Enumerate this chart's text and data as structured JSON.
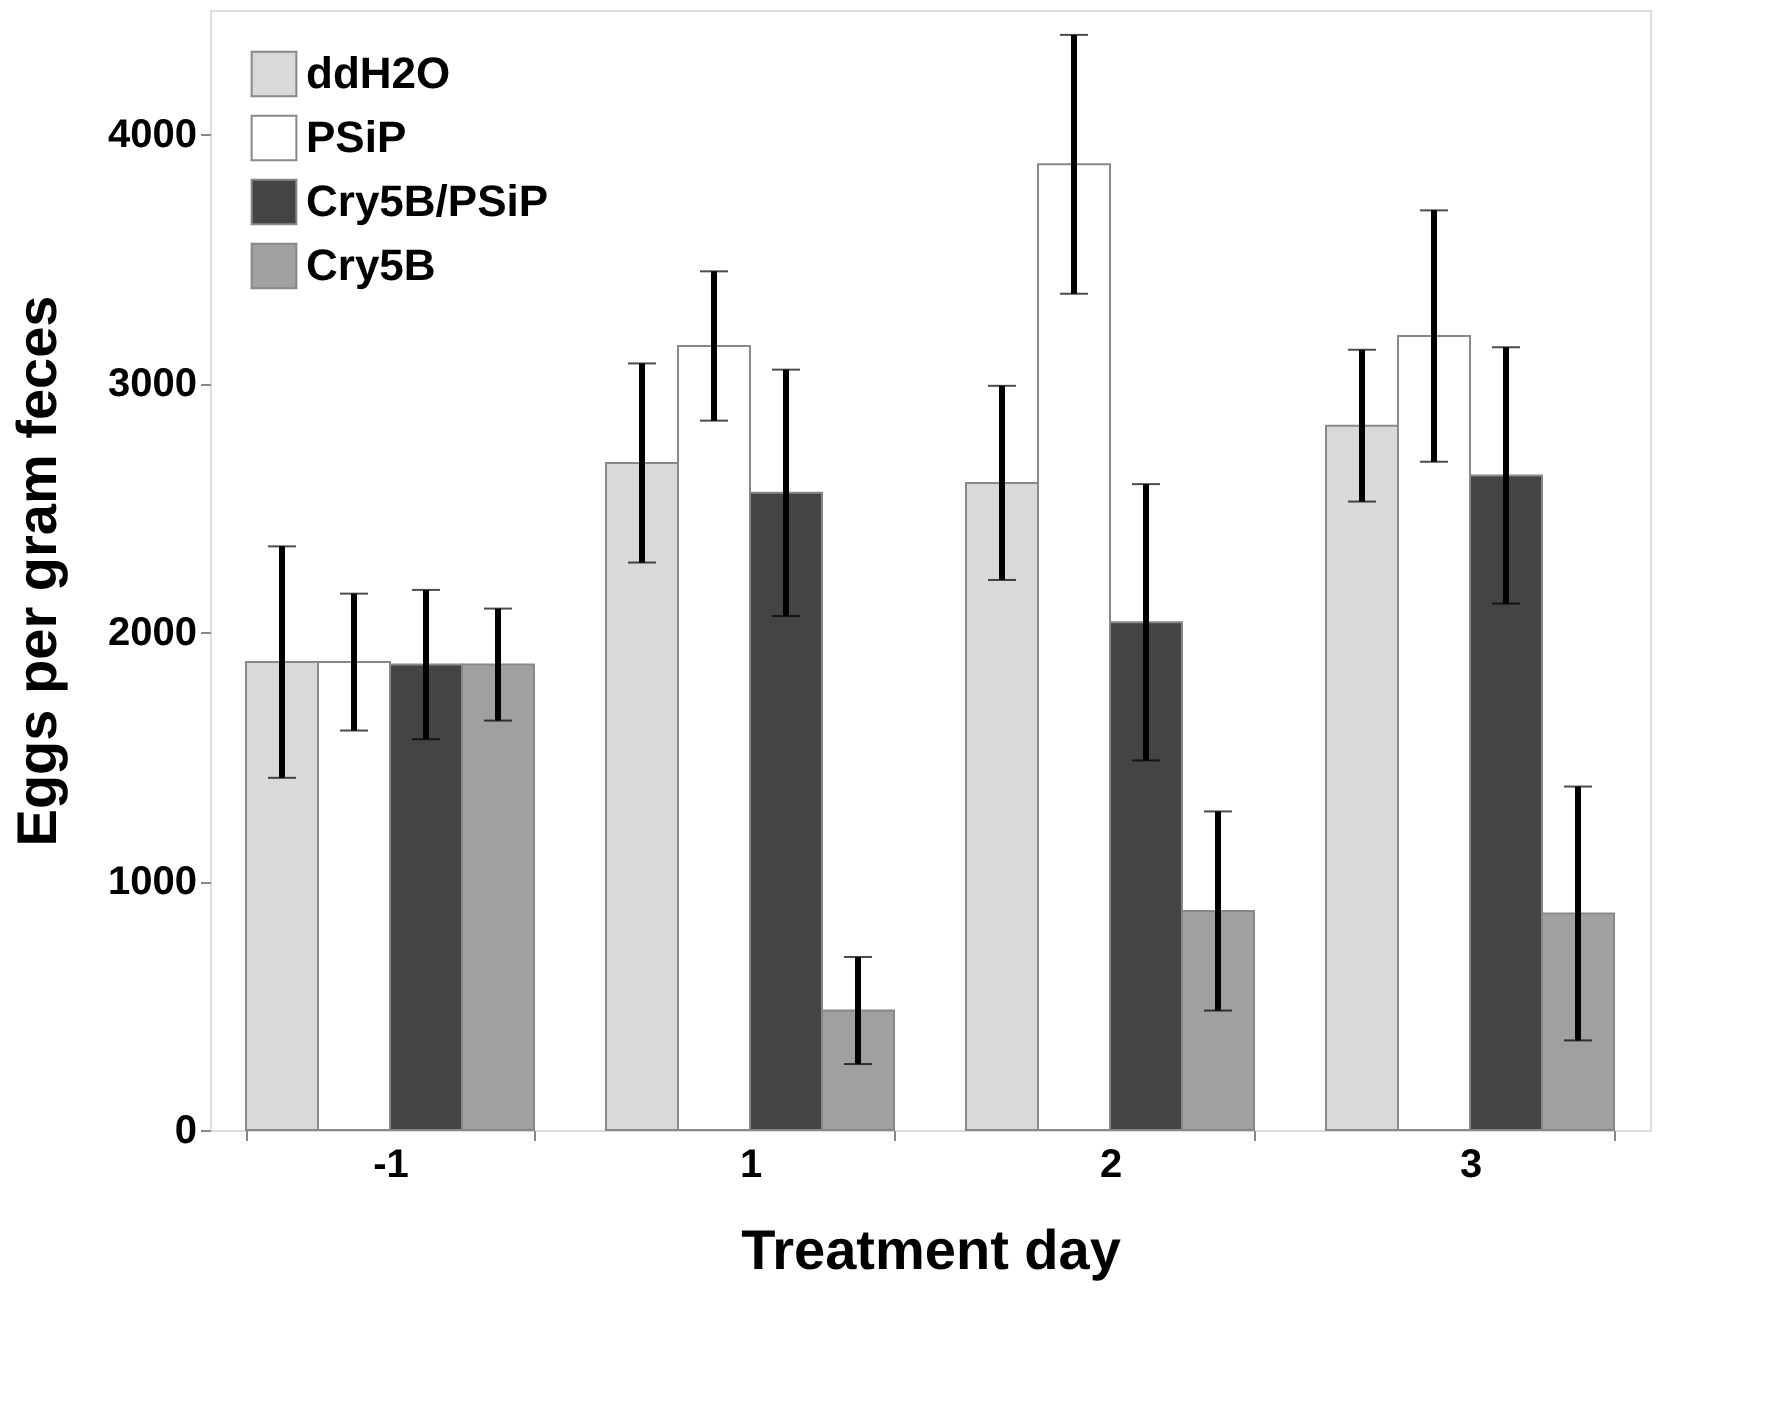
{
  "chart_data": {
    "type": "bar",
    "xlabel": "Treatment day",
    "ylabel": "Eggs per gram feces",
    "categories": [
      "-1",
      "1",
      "2",
      "3"
    ],
    "series": [
      {
        "name": "ddH2O",
        "color": "#d9d9d9",
        "values": [
          1880,
          2680,
          2600,
          2830
        ],
        "errors": [
          465,
          400,
          390,
          305
        ]
      },
      {
        "name": "PSiP",
        "color": "#ffffff",
        "values": [
          1880,
          3150,
          3880,
          3190
        ],
        "errors": [
          275,
          300,
          520,
          505
        ]
      },
      {
        "name": "Cry5B/PSiP",
        "color": "#444444",
        "values": [
          1870,
          2560,
          2040,
          2630
        ],
        "errors": [
          300,
          495,
          555,
          515
        ]
      },
      {
        "name": "Cry5B",
        "color": "#a0a0a0",
        "values": [
          1870,
          480,
          880,
          870
        ],
        "errors": [
          225,
          215,
          400,
          510
        ]
      }
    ],
    "ylim": [
      0,
      4500
    ],
    "yticks": [
      0,
      1000,
      2000,
      3000,
      4000
    ],
    "grid": false,
    "legend": "top left"
  }
}
